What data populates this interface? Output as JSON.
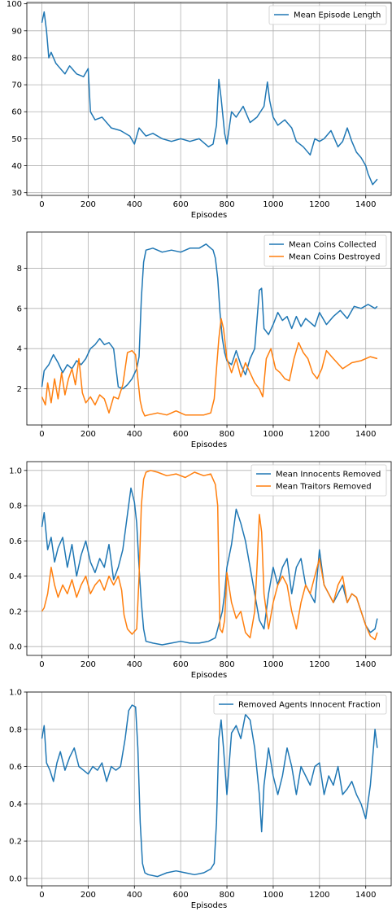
{
  "colors": {
    "blue": "#1f77b4",
    "orange": "#ff7f0e",
    "grid": "#b0b0b0"
  },
  "chart_data": [
    {
      "type": "line",
      "xlabel": "Episodes",
      "ylabel": "",
      "xlim": [
        -65,
        1510
      ],
      "ylim": [
        29,
        100.5
      ],
      "xticks": [
        0,
        200,
        400,
        600,
        800,
        1000,
        1200,
        1400
      ],
      "yticks": [
        30,
        40,
        50,
        60,
        70,
        80,
        90,
        100
      ],
      "grid": true,
      "legend": "top-right",
      "series": [
        {
          "name": "Mean Episode Length",
          "color": "#1f77b4",
          "x": [
            0,
            10,
            20,
            30,
            40,
            60,
            80,
            100,
            120,
            150,
            180,
            200,
            210,
            230,
            260,
            300,
            340,
            380,
            400,
            420,
            450,
            480,
            520,
            560,
            600,
            640,
            680,
            720,
            740,
            755,
            765,
            775,
            790,
            800,
            820,
            840,
            870,
            900,
            930,
            960,
            975,
            985,
            1000,
            1020,
            1050,
            1080,
            1100,
            1130,
            1160,
            1180,
            1200,
            1220,
            1250,
            1280,
            1300,
            1320,
            1340,
            1360,
            1380,
            1400,
            1410,
            1420,
            1430,
            1440,
            1450
          ],
          "values": [
            93,
            97,
            90,
            80,
            82,
            78,
            76,
            74,
            77,
            74,
            73,
            76,
            60,
            57,
            58,
            54,
            53,
            51,
            48,
            54,
            51,
            52,
            50,
            49,
            50,
            49,
            50,
            47,
            48,
            55,
            72,
            65,
            52,
            48,
            60,
            58,
            62,
            56,
            58,
            62,
            71,
            64,
            58,
            55,
            57,
            54,
            49,
            47,
            44,
            50,
            49,
            50,
            53,
            47,
            49,
            54,
            49,
            45,
            43,
            40,
            37,
            35,
            33,
            34,
            35
          ]
        }
      ]
    },
    {
      "type": "line",
      "xlabel": "Episodes",
      "ylabel": "",
      "xlim": [
        -65,
        1510
      ],
      "ylim": [
        0.2,
        9.8
      ],
      "xticks": [
        0,
        200,
        400,
        600,
        800,
        1000,
        1200,
        1400
      ],
      "yticks": [
        2,
        4,
        6,
        8
      ],
      "grid": true,
      "legend": "top-right",
      "series": [
        {
          "name": "Mean Coins Collected",
          "color": "#1f77b4",
          "x": [
            0,
            10,
            30,
            50,
            70,
            90,
            110,
            130,
            150,
            170,
            190,
            210,
            230,
            250,
            270,
            290,
            310,
            330,
            350,
            370,
            390,
            410,
            420,
            430,
            440,
            450,
            480,
            520,
            560,
            600,
            640,
            680,
            710,
            730,
            740,
            750,
            760,
            770,
            780,
            790,
            800,
            820,
            840,
            860,
            880,
            900,
            920,
            940,
            950,
            960,
            980,
            1000,
            1020,
            1040,
            1060,
            1080,
            1100,
            1120,
            1140,
            1160,
            1180,
            1200,
            1230,
            1260,
            1290,
            1320,
            1350,
            1380,
            1410,
            1440,
            1450
          ],
          "values": [
            2.1,
            2.9,
            3.2,
            3.7,
            3.3,
            2.8,
            3.2,
            3.0,
            3.4,
            3.2,
            3.5,
            4.0,
            4.2,
            4.5,
            4.2,
            4.3,
            4.0,
            2.1,
            2.0,
            2.2,
            2.5,
            3.0,
            3.6,
            6.5,
            8.3,
            8.9,
            9.0,
            8.8,
            8.9,
            8.8,
            9.0,
            9.0,
            9.2,
            9.0,
            8.9,
            8.5,
            7.5,
            5.8,
            4.5,
            3.8,
            3.4,
            3.2,
            3.9,
            3.2,
            2.7,
            3.5,
            4.0,
            6.9,
            7.0,
            5.0,
            4.7,
            5.2,
            5.8,
            5.4,
            5.6,
            5.0,
            5.6,
            5.1,
            5.5,
            5.3,
            5.1,
            5.8,
            5.2,
            5.6,
            5.9,
            5.5,
            6.1,
            6.0,
            6.2,
            6.0,
            6.1
          ]
        },
        {
          "name": "Mean Coins Destroyed",
          "color": "#ff7f0e",
          "x": [
            0,
            15,
            25,
            40,
            55,
            70,
            85,
            100,
            115,
            130,
            145,
            160,
            175,
            190,
            210,
            230,
            250,
            270,
            290,
            310,
            330,
            350,
            370,
            390,
            405,
            415,
            425,
            435,
            445,
            460,
            500,
            540,
            580,
            620,
            660,
            700,
            730,
            745,
            755,
            765,
            775,
            785,
            800,
            820,
            840,
            860,
            880,
            900,
            920,
            940,
            955,
            970,
            990,
            1010,
            1030,
            1050,
            1070,
            1090,
            1110,
            1130,
            1150,
            1170,
            1190,
            1210,
            1230,
            1260,
            1300,
            1340,
            1380,
            1420,
            1450
          ],
          "values": [
            1.6,
            1.2,
            2.3,
            1.3,
            2.5,
            1.5,
            2.8,
            1.7,
            2.5,
            3.0,
            2.2,
            3.5,
            1.8,
            1.3,
            1.6,
            1.2,
            1.7,
            1.5,
            0.8,
            1.6,
            1.5,
            2.2,
            3.8,
            3.9,
            3.7,
            2.5,
            1.4,
            0.9,
            0.65,
            0.7,
            0.8,
            0.7,
            0.9,
            0.7,
            0.7,
            0.7,
            0.8,
            1.5,
            3.0,
            4.5,
            5.5,
            5.0,
            3.5,
            2.8,
            3.5,
            2.6,
            3.3,
            2.8,
            2.3,
            2.0,
            1.6,
            3.5,
            4.0,
            3.0,
            2.8,
            2.5,
            2.4,
            3.5,
            4.3,
            3.8,
            3.5,
            2.8,
            2.5,
            3.0,
            3.9,
            3.5,
            3.0,
            3.3,
            3.4,
            3.6,
            3.5
          ]
        }
      ]
    },
    {
      "type": "line",
      "xlabel": "Episodes",
      "ylabel": "",
      "xlim": [
        -65,
        1510
      ],
      "ylim": [
        -0.05,
        1.05
      ],
      "xticks": [
        0,
        200,
        400,
        600,
        800,
        1000,
        1200,
        1400
      ],
      "yticks": [
        0.0,
        0.2,
        0.4,
        0.6,
        0.8,
        1.0
      ],
      "grid": true,
      "legend": "top-right",
      "series": [
        {
          "name": "Mean Innocents Removed",
          "color": "#1f77b4",
          "x": [
            0,
            10,
            25,
            40,
            55,
            70,
            90,
            110,
            130,
            150,
            170,
            190,
            210,
            230,
            250,
            270,
            290,
            310,
            330,
            350,
            370,
            385,
            400,
            410,
            420,
            430,
            440,
            450,
            480,
            520,
            560,
            600,
            640,
            680,
            720,
            750,
            760,
            770,
            780,
            790,
            800,
            820,
            840,
            860,
            880,
            900,
            920,
            940,
            960,
            980,
            1000,
            1020,
            1040,
            1060,
            1080,
            1100,
            1120,
            1140,
            1160,
            1180,
            1200,
            1220,
            1240,
            1260,
            1280,
            1300,
            1320,
            1340,
            1360,
            1380,
            1400,
            1420,
            1440,
            1450
          ],
          "values": [
            0.68,
            0.76,
            0.55,
            0.62,
            0.48,
            0.56,
            0.62,
            0.45,
            0.58,
            0.4,
            0.52,
            0.6,
            0.48,
            0.42,
            0.5,
            0.45,
            0.58,
            0.38,
            0.45,
            0.55,
            0.75,
            0.9,
            0.82,
            0.7,
            0.45,
            0.25,
            0.1,
            0.03,
            0.02,
            0.01,
            0.02,
            0.03,
            0.02,
            0.02,
            0.03,
            0.05,
            0.1,
            0.15,
            0.2,
            0.3,
            0.45,
            0.58,
            0.78,
            0.7,
            0.6,
            0.45,
            0.3,
            0.15,
            0.1,
            0.3,
            0.45,
            0.35,
            0.45,
            0.5,
            0.3,
            0.45,
            0.5,
            0.35,
            0.3,
            0.25,
            0.55,
            0.35,
            0.3,
            0.25,
            0.3,
            0.35,
            0.25,
            0.3,
            0.28,
            0.2,
            0.12,
            0.08,
            0.1,
            0.16
          ]
        },
        {
          "name": "Mean Traitors Removed",
          "color": "#ff7f0e",
          "x": [
            0,
            10,
            25,
            40,
            55,
            70,
            90,
            110,
            130,
            150,
            170,
            190,
            210,
            230,
            250,
            270,
            290,
            310,
            330,
            345,
            355,
            370,
            390,
            410,
            420,
            430,
            440,
            450,
            470,
            500,
            540,
            580,
            620,
            660,
            700,
            730,
            750,
            760,
            765,
            770,
            780,
            790,
            800,
            820,
            840,
            860,
            880,
            900,
            920,
            930,
            940,
            950,
            960,
            980,
            1000,
            1020,
            1040,
            1060,
            1080,
            1100,
            1120,
            1140,
            1160,
            1180,
            1200,
            1220,
            1240,
            1260,
            1280,
            1300,
            1320,
            1340,
            1360,
            1380,
            1400,
            1420,
            1440,
            1450
          ],
          "values": [
            0.2,
            0.22,
            0.3,
            0.45,
            0.35,
            0.28,
            0.35,
            0.3,
            0.38,
            0.28,
            0.35,
            0.4,
            0.3,
            0.35,
            0.38,
            0.32,
            0.4,
            0.35,
            0.4,
            0.32,
            0.18,
            0.1,
            0.07,
            0.1,
            0.4,
            0.8,
            0.95,
            0.99,
            1.0,
            0.99,
            0.97,
            0.98,
            0.96,
            0.99,
            0.97,
            0.98,
            0.92,
            0.8,
            0.4,
            0.1,
            0.08,
            0.15,
            0.42,
            0.25,
            0.16,
            0.2,
            0.08,
            0.05,
            0.2,
            0.45,
            0.75,
            0.65,
            0.3,
            0.1,
            0.25,
            0.35,
            0.4,
            0.35,
            0.2,
            0.1,
            0.25,
            0.35,
            0.3,
            0.4,
            0.5,
            0.35,
            0.3,
            0.25,
            0.35,
            0.4,
            0.25,
            0.3,
            0.28,
            0.2,
            0.12,
            0.06,
            0.04,
            0.08
          ]
        }
      ]
    },
    {
      "type": "line",
      "xlabel": "Episodes",
      "ylabel": "",
      "xlim": [
        -65,
        1510
      ],
      "ylim": [
        -0.04,
        1.0
      ],
      "xticks": [
        0,
        200,
        400,
        600,
        800,
        1000,
        1200,
        1400
      ],
      "yticks": [
        0.0,
        0.2,
        0.4,
        0.6,
        0.8,
        1.0
      ],
      "grid": true,
      "legend": "top-right",
      "series": [
        {
          "name": "Removed Agents Innocent Fraction",
          "color": "#1f77b4",
          "x": [
            0,
            10,
            20,
            35,
            50,
            65,
            80,
            100,
            120,
            140,
            160,
            180,
            200,
            220,
            240,
            260,
            280,
            300,
            320,
            340,
            360,
            375,
            390,
            405,
            415,
            425,
            435,
            445,
            460,
            500,
            540,
            580,
            620,
            660,
            700,
            730,
            745,
            755,
            765,
            775,
            785,
            800,
            820,
            840,
            860,
            880,
            900,
            920,
            940,
            950,
            960,
            980,
            1000,
            1020,
            1040,
            1060,
            1080,
            1100,
            1120,
            1140,
            1160,
            1180,
            1200,
            1220,
            1240,
            1260,
            1280,
            1300,
            1320,
            1340,
            1360,
            1380,
            1400,
            1420,
            1440,
            1450
          ],
          "values": [
            0.75,
            0.82,
            0.62,
            0.58,
            0.52,
            0.62,
            0.68,
            0.58,
            0.65,
            0.7,
            0.6,
            0.58,
            0.56,
            0.6,
            0.58,
            0.62,
            0.52,
            0.6,
            0.58,
            0.6,
            0.75,
            0.9,
            0.93,
            0.92,
            0.7,
            0.3,
            0.08,
            0.03,
            0.02,
            0.01,
            0.03,
            0.04,
            0.03,
            0.02,
            0.03,
            0.05,
            0.08,
            0.3,
            0.75,
            0.85,
            0.7,
            0.45,
            0.78,
            0.82,
            0.75,
            0.88,
            0.85,
            0.7,
            0.45,
            0.25,
            0.5,
            0.7,
            0.55,
            0.45,
            0.55,
            0.7,
            0.6,
            0.45,
            0.6,
            0.55,
            0.5,
            0.6,
            0.62,
            0.45,
            0.55,
            0.5,
            0.6,
            0.45,
            0.48,
            0.52,
            0.45,
            0.4,
            0.32,
            0.5,
            0.8,
            0.7
          ]
        }
      ]
    }
  ]
}
